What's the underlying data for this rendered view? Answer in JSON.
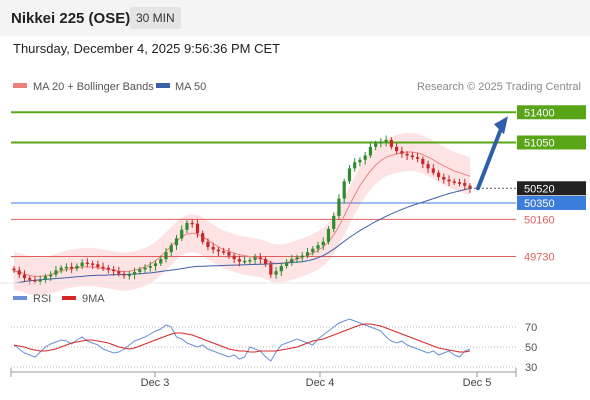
{
  "header": {
    "instrument": "Nikkei 225 (OSE)",
    "timeframe": "30 MIN",
    "datetime": "Thursday, December 4, 2025 9:56:36 PM CET"
  },
  "legend": {
    "ma20_label": "MA 20 + Bollinger Bands",
    "ma50_label": "MA 50",
    "credit": "Research © 2025 Trading Central",
    "rsi_label": "RSI",
    "rsi_ma_label": "9MA"
  },
  "colors": {
    "up": "#2e8b2e",
    "down": "#c62828",
    "ma20": "#f08080",
    "bollinger_fill": "#fde3e3",
    "ma50": "#3b5fa8",
    "resistance": "#58a618",
    "support": "#e06060",
    "pivot": "#3b7ddd",
    "arrow": "#2f5faa",
    "last_price_bg": "#222222",
    "rsi": "#6b8fd6",
    "rsi_ma": "#d62828"
  },
  "chart_data": [
    {
      "type": "candlestick",
      "title": "Nikkei 225 (OSE)",
      "timeframe": "30 MIN",
      "x_ticks": [
        "Dec 3",
        "Dec 4",
        "Dec 5"
      ],
      "ylim": [
        49400,
        51600
      ],
      "levels": [
        {
          "value": 51400,
          "label": "51400",
          "kind": "resistance"
        },
        {
          "value": 51050,
          "label": "51050",
          "kind": "resistance"
        },
        {
          "value": 50520,
          "label": "50520",
          "kind": "last"
        },
        {
          "value": 50350,
          "label": "50350",
          "kind": "pivot"
        },
        {
          "value": 50160,
          "label": "50160",
          "kind": "support"
        },
        {
          "value": 49730,
          "label": "49730",
          "kind": "support"
        }
      ],
      "last_price": 50520,
      "target_arrow": {
        "from": 50520,
        "to": 51400
      },
      "close": [
        49570,
        49520,
        49480,
        49460,
        49440,
        49460,
        49500,
        49520,
        49570,
        49600,
        49610,
        49590,
        49620,
        49660,
        49650,
        49640,
        49610,
        49600,
        49580,
        49560,
        49530,
        49510,
        49520,
        49550,
        49580,
        49600,
        49620,
        49650,
        49700,
        49780,
        49860,
        49940,
        50040,
        50120,
        50110,
        50000,
        49900,
        49840,
        49810,
        49790,
        49780,
        49740,
        49700,
        49670,
        49680,
        49690,
        49720,
        49700,
        49640,
        49520,
        49560,
        49620,
        49660,
        49700,
        49720,
        49740,
        49780,
        49820,
        49860,
        49900,
        50050,
        50200,
        50400,
        50600,
        50750,
        50820,
        50850,
        50900,
        51000,
        51040,
        51060,
        51080,
        51000,
        50950,
        50920,
        50900,
        50880,
        50860,
        50800,
        50750,
        50700,
        50650,
        50620,
        50600,
        50590,
        50580,
        50550,
        50520
      ],
      "ma20": [
        49560,
        49550,
        49530,
        49510,
        49500,
        49500,
        49505,
        49520,
        49540,
        49560,
        49580,
        49590,
        49600,
        49610,
        49610,
        49610,
        49600,
        49590,
        49580,
        49570,
        49560,
        49555,
        49560,
        49570,
        49590,
        49610,
        49640,
        49680,
        49730,
        49790,
        49850,
        49910,
        49960,
        49990,
        50000,
        49990,
        49960,
        49920,
        49880,
        49840,
        49810,
        49790,
        49770,
        49750,
        49740,
        49730,
        49720,
        49710,
        49690,
        49660,
        49650,
        49650,
        49660,
        49680,
        49700,
        49720,
        49740,
        49770,
        49800,
        49840,
        49900,
        49980,
        50080,
        50200,
        50320,
        50440,
        50550,
        50640,
        50720,
        50790,
        50840,
        50880,
        50900,
        50920,
        50930,
        50940,
        50940,
        50930,
        50910,
        50880,
        50850,
        50810,
        50780,
        50750,
        50720,
        50700,
        50680,
        50660
      ],
      "ma50": [
        49420,
        49430,
        49440,
        49450,
        49455,
        49460,
        49465,
        49470,
        49475,
        49480,
        49485,
        49490,
        49495,
        49500,
        49505,
        49510,
        49512,
        49514,
        49516,
        49518,
        49520,
        49522,
        49524,
        49526,
        49530,
        49535,
        49540,
        49548,
        49556,
        49564,
        49572,
        49580,
        49590,
        49600,
        49610,
        49615,
        49618,
        49620,
        49622,
        49624,
        49626,
        49628,
        49630,
        49632,
        49634,
        49636,
        49638,
        49640,
        49642,
        49645,
        49648,
        49652,
        49656,
        49660,
        49665,
        49670,
        49680,
        49695,
        49715,
        49740,
        49775,
        49815,
        49860,
        49905,
        49950,
        49990,
        50030,
        50065,
        50100,
        50135,
        50165,
        50195,
        50225,
        50250,
        50275,
        50300,
        50320,
        50340,
        50360,
        50380,
        50400,
        50420,
        50440,
        50460,
        50475,
        50490,
        50505,
        50520
      ]
    },
    {
      "type": "line",
      "title": "RSI",
      "ylim": [
        25,
        85
      ],
      "y_ticks": [
        70,
        50,
        30
      ],
      "series": [
        {
          "name": "RSI",
          "values": [
            52,
            48,
            44,
            42,
            40,
            45,
            50,
            53,
            55,
            57,
            56,
            53,
            57,
            60,
            56,
            54,
            52,
            48,
            46,
            44,
            45,
            48,
            52,
            56,
            58,
            60,
            63,
            66,
            68,
            72,
            70,
            60,
            58,
            54,
            52,
            50,
            52,
            48,
            46,
            44,
            42,
            40,
            42,
            38,
            40,
            50,
            48,
            46,
            40,
            36,
            45,
            52,
            54,
            56,
            58,
            56,
            54,
            52,
            58,
            62,
            66,
            70,
            74,
            76,
            78,
            76,
            74,
            72,
            70,
            68,
            66,
            60,
            56,
            54,
            56,
            52,
            50,
            48,
            46,
            44,
            46,
            42,
            44,
            46,
            42,
            40,
            46,
            48
          ]
        },
        {
          "name": "9MA",
          "values": [
            52,
            51,
            50,
            48,
            47,
            46,
            46,
            47,
            48,
            50,
            52,
            54,
            55,
            56,
            57,
            57,
            56,
            55,
            54,
            52,
            50,
            49,
            48,
            49,
            51,
            53,
            55,
            57,
            59,
            61,
            63,
            64,
            64,
            63,
            62,
            60,
            58,
            56,
            54,
            52,
            50,
            48,
            47,
            46,
            46,
            45,
            45,
            46,
            46,
            46,
            46,
            47,
            48,
            49,
            50,
            52,
            54,
            56,
            57,
            58,
            60,
            62,
            64,
            66,
            68,
            70,
            72,
            73,
            73,
            72,
            71,
            69,
            67,
            65,
            63,
            61,
            59,
            57,
            55,
            53,
            51,
            49,
            48,
            47,
            46,
            45,
            45,
            46
          ]
        }
      ]
    }
  ]
}
